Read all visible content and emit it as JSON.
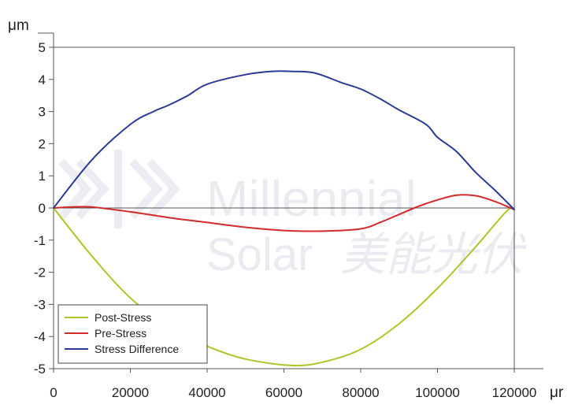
{
  "chart_data": {
    "type": "line",
    "xlabel": "μr",
    "ylabel": "μm",
    "xlim": [
      0,
      120000
    ],
    "ylim": [
      -5,
      5
    ],
    "xticks": [
      0,
      20000,
      40000,
      60000,
      80000,
      100000,
      120000
    ],
    "yticks": [
      5,
      4,
      3,
      2,
      1,
      0,
      -1,
      -2,
      -3,
      -4,
      -5
    ],
    "grid": false,
    "legend_position": "bottom-left",
    "series": [
      {
        "name": "Post-Stress",
        "color": "#a8c828",
        "x": [
          0,
          10000,
          20000,
          30000,
          40000,
          50000,
          62000,
          70000,
          80000,
          90000,
          100000,
          110000,
          118000,
          120000
        ],
        "y": [
          0,
          -1.5,
          -2.8,
          -3.7,
          -4.3,
          -4.7,
          -4.9,
          -4.8,
          -4.4,
          -3.6,
          -2.5,
          -1.2,
          -0.1,
          -0.05
        ]
      },
      {
        "name": "Pre-Stress",
        "color": "#d42a2a",
        "x": [
          0,
          5000,
          10000,
          20000,
          30000,
          40000,
          50000,
          60000,
          70000,
          80000,
          85000,
          90000,
          95000,
          100000,
          105000,
          110000,
          115000,
          120000
        ],
        "y": [
          0,
          0.03,
          0.03,
          -0.12,
          -0.3,
          -0.45,
          -0.6,
          -0.7,
          -0.72,
          -0.65,
          -0.45,
          -0.2,
          0.05,
          0.25,
          0.4,
          0.38,
          0.2,
          -0.05
        ]
      },
      {
        "name": "Stress Difference",
        "color": "#2b3a96",
        "x": [
          0,
          10000,
          20000,
          26000,
          30000,
          35000,
          40000,
          50000,
          57000,
          62000,
          68000,
          75000,
          80000,
          85000,
          90000,
          97000,
          100000,
          105000,
          110000,
          115000,
          120000
        ],
        "y": [
          0,
          1.5,
          2.6,
          3.0,
          3.2,
          3.5,
          3.85,
          4.15,
          4.25,
          4.25,
          4.2,
          3.9,
          3.7,
          3.4,
          3.05,
          2.6,
          2.2,
          1.75,
          1.1,
          0.55,
          -0.05
        ]
      }
    ]
  },
  "watermark": {
    "brand_line1": "Millennial",
    "brand_line2": "Solar",
    "brand_cn": "美能光伏"
  }
}
